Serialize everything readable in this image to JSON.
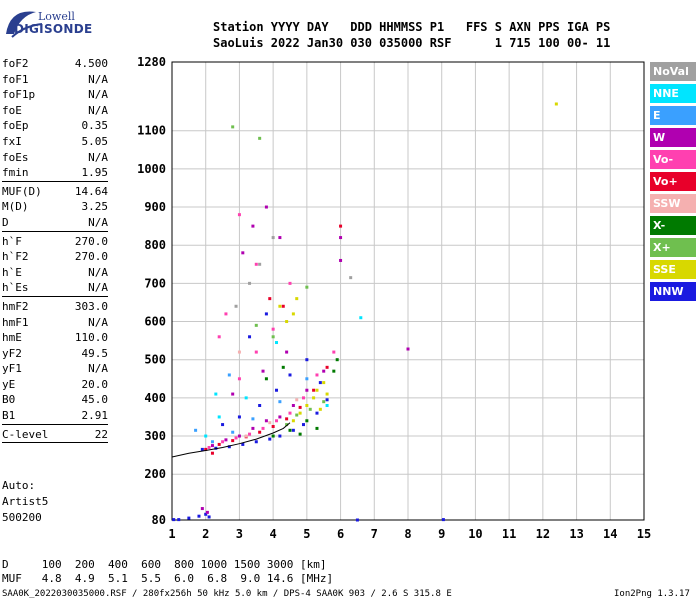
{
  "logo": {
    "line1": "Lowell",
    "line2": "DIGISONDE"
  },
  "header": {
    "labels_line": "Station YYYY DAY   DDD HHMMSS P1   FFS S AXN PPS IGA PS",
    "values_line": "SaoLuis 2022 Jan30 030 035000 RSF      1 715 100 00- 11"
  },
  "parameters": [
    {
      "name": "foF2",
      "value": "4.500"
    },
    {
      "name": "foF1",
      "value": "N/A"
    },
    {
      "name": "foF1p",
      "value": "N/A"
    },
    {
      "name": "foE",
      "value": "N/A"
    },
    {
      "name": "foEp",
      "value": "0.35"
    },
    {
      "name": "fxI",
      "value": "5.05"
    },
    {
      "name": "foEs",
      "value": "N/A"
    },
    {
      "name": "fmin",
      "value": "1.95"
    },
    {
      "sep": true
    },
    {
      "name": "MUF(D)",
      "value": "14.64"
    },
    {
      "name": "M(D)",
      "value": "3.25"
    },
    {
      "name": "D",
      "value": "N/A"
    },
    {
      "sep": true
    },
    {
      "name": "h`F",
      "value": "270.0"
    },
    {
      "name": "h`F2",
      "value": "270.0"
    },
    {
      "name": "h`E",
      "value": "N/A"
    },
    {
      "name": "h`Es",
      "value": "N/A"
    },
    {
      "sep": true
    },
    {
      "name": "hmF2",
      "value": "303.0"
    },
    {
      "name": "hmF1",
      "value": "N/A"
    },
    {
      "name": "hmE",
      "value": "110.0"
    },
    {
      "name": "yF2",
      "value": "49.5"
    },
    {
      "name": "yF1",
      "value": "N/A"
    },
    {
      "name": "yE",
      "value": "20.0"
    },
    {
      "name": "B0",
      "value": "45.0"
    },
    {
      "name": "B1",
      "value": "2.91"
    },
    {
      "sep": true
    },
    {
      "name": "C-level",
      "value": "22"
    },
    {
      "sep": true
    }
  ],
  "auto": {
    "line1": "Auto:",
    "line2": "Artist5",
    "line3": "500200"
  },
  "legend": [
    {
      "label": "NoVal",
      "color": "#a0a0a0"
    },
    {
      "label": "NNE",
      "color": "#00e5ff"
    },
    {
      "label": "E",
      "color": "#3aa0ff"
    },
    {
      "label": "W",
      "color": "#b000b0"
    },
    {
      "label": "Vo-",
      "color": "#ff40b0"
    },
    {
      "label": "Vo+",
      "color": "#e8002a"
    },
    {
      "label": "SSW",
      "color": "#f5b0b0"
    },
    {
      "label": "X-",
      "color": "#007a00"
    },
    {
      "label": "X+",
      "color": "#6fbf4f"
    },
    {
      "label": "SSE",
      "color": "#d8d800"
    },
    {
      "label": "NNW",
      "color": "#1a1ae0"
    }
  ],
  "footer": {
    "d_line": "D     100  200  400  600  800 1000 1500 3000 [km]",
    "muf_line": "MUF   4.8  4.9  5.1  5.5  6.0  6.8  9.0 14.6 [MHz]",
    "file_line": "SAA0K_2022030035000.RSF / 280fx256h 50 kHz 5.0 km / DPS-4 SAA0K 903 / 2.6 S 315.8 E",
    "version": "Ion2Png 1.3.17"
  },
  "chart_data": {
    "type": "scatter",
    "x": {
      "min": 1,
      "max": 15,
      "ticks": [
        1,
        2,
        3,
        4,
        5,
        6,
        7,
        8,
        9,
        10,
        11,
        12,
        13,
        14,
        15
      ]
    },
    "y": {
      "min": 80,
      "max": 1280,
      "ticks": [
        80,
        200,
        300,
        400,
        500,
        600,
        700,
        800,
        900,
        1000,
        1100,
        1280
      ]
    },
    "grid": true,
    "legend_position": "right",
    "series": [
      {
        "name": "NNW",
        "color": "#1a1ae0",
        "points": [
          [
            1.05,
            81
          ],
          [
            1.2,
            81
          ],
          [
            1.5,
            85
          ],
          [
            1.8,
            90
          ],
          [
            2.0,
            95
          ],
          [
            2.1,
            88
          ],
          [
            1.9,
            265
          ],
          [
            2.3,
            268
          ],
          [
            2.7,
            272
          ],
          [
            3.1,
            278
          ],
          [
            3.5,
            285
          ],
          [
            3.9,
            292
          ],
          [
            4.2,
            300
          ],
          [
            4.6,
            315
          ],
          [
            4.9,
            330
          ],
          [
            5.3,
            360
          ],
          [
            5.6,
            395
          ],
          [
            2.5,
            330
          ],
          [
            3.0,
            350
          ],
          [
            3.6,
            380
          ],
          [
            4.1,
            420
          ],
          [
            4.5,
            460
          ],
          [
            5.0,
            500
          ],
          [
            5.4,
            440
          ],
          [
            3.3,
            560
          ],
          [
            3.8,
            620
          ],
          [
            9.05,
            81
          ],
          [
            6.5,
            80
          ]
        ]
      },
      {
        "name": "W",
        "color": "#b000b0",
        "points": [
          [
            1.9,
            110
          ],
          [
            2.05,
            100
          ],
          [
            2.2,
            275
          ],
          [
            2.6,
            290
          ],
          [
            3.0,
            300
          ],
          [
            3.4,
            320
          ],
          [
            3.8,
            340
          ],
          [
            4.2,
            350
          ],
          [
            4.6,
            380
          ],
          [
            5.0,
            420
          ],
          [
            5.5,
            470
          ],
          [
            6.0,
            760
          ],
          [
            6.0,
            820
          ],
          [
            3.1,
            780
          ],
          [
            3.4,
            850
          ],
          [
            3.8,
            900
          ],
          [
            4.2,
            820
          ],
          [
            8.0,
            528
          ],
          [
            2.8,
            410
          ],
          [
            3.7,
            470
          ],
          [
            4.4,
            520
          ]
        ]
      },
      {
        "name": "Vo-",
        "color": "#ff40b0",
        "points": [
          [
            2.1,
            270
          ],
          [
            2.5,
            285
          ],
          [
            2.9,
            295
          ],
          [
            3.3,
            305
          ],
          [
            3.7,
            320
          ],
          [
            4.1,
            340
          ],
          [
            4.5,
            360
          ],
          [
            4.9,
            400
          ],
          [
            5.3,
            460
          ],
          [
            5.8,
            520
          ],
          [
            3.0,
            450
          ],
          [
            3.5,
            520
          ],
          [
            4.0,
            580
          ],
          [
            2.6,
            620
          ],
          [
            3.0,
            880
          ],
          [
            3.5,
            750
          ],
          [
            4.5,
            700
          ],
          [
            2.4,
            560
          ]
        ]
      },
      {
        "name": "Vo+",
        "color": "#e8002a",
        "points": [
          [
            2.0,
            265
          ],
          [
            2.4,
            278
          ],
          [
            2.8,
            288
          ],
          [
            3.2,
            298
          ],
          [
            3.6,
            310
          ],
          [
            4.0,
            325
          ],
          [
            4.4,
            345
          ],
          [
            4.8,
            375
          ],
          [
            5.2,
            420
          ],
          [
            5.6,
            480
          ],
          [
            6.0,
            850
          ],
          [
            4.3,
            640
          ],
          [
            3.9,
            660
          ],
          [
            2.2,
            255
          ]
        ]
      },
      {
        "name": "SSE",
        "color": "#d8d800",
        "points": [
          [
            4.6,
            340
          ],
          [
            4.8,
            360
          ],
          [
            5.0,
            380
          ],
          [
            5.2,
            400
          ],
          [
            5.3,
            420
          ],
          [
            5.5,
            440
          ],
          [
            5.6,
            410
          ],
          [
            5.4,
            370
          ],
          [
            4.4,
            600
          ],
          [
            4.6,
            620
          ],
          [
            4.2,
            640
          ],
          [
            4.7,
            660
          ],
          [
            12.4,
            1170
          ]
        ]
      },
      {
        "name": "X-",
        "color": "#007a00",
        "points": [
          [
            4.0,
            300
          ],
          [
            4.5,
            315
          ],
          [
            5.0,
            340
          ],
          [
            5.3,
            320
          ],
          [
            4.8,
            305
          ],
          [
            3.8,
            450
          ],
          [
            4.3,
            480
          ],
          [
            5.8,
            470
          ],
          [
            5.9,
            500
          ]
        ]
      },
      {
        "name": "X+",
        "color": "#6fbf4f",
        "points": [
          [
            4.4,
            330
          ],
          [
            4.7,
            355
          ],
          [
            5.1,
            370
          ],
          [
            5.5,
            390
          ],
          [
            3.5,
            590
          ],
          [
            4.0,
            560
          ],
          [
            2.8,
            1110
          ],
          [
            3.6,
            1080
          ],
          [
            5.0,
            690
          ]
        ]
      },
      {
        "name": "NNE",
        "color": "#00e5ff",
        "points": [
          [
            2.0,
            300
          ],
          [
            2.4,
            350
          ],
          [
            3.2,
            400
          ],
          [
            5.6,
            380
          ],
          [
            6.6,
            610
          ],
          [
            2.3,
            410
          ],
          [
            4.1,
            545
          ]
        ]
      },
      {
        "name": "E",
        "color": "#3aa0ff",
        "points": [
          [
            2.2,
            285
          ],
          [
            2.8,
            310
          ],
          [
            3.4,
            345
          ],
          [
            4.2,
            390
          ],
          [
            5.0,
            450
          ],
          [
            1.7,
            315
          ],
          [
            2.7,
            460
          ]
        ]
      },
      {
        "name": "SSW",
        "color": "#f5b0b0",
        "points": [
          [
            3.2,
            300
          ],
          [
            3.9,
            335
          ],
          [
            4.7,
            395
          ],
          [
            3.0,
            520
          ]
        ]
      },
      {
        "name": "NoVal",
        "color": "#a0a0a0",
        "points": [
          [
            3.3,
            700
          ],
          [
            3.6,
            750
          ],
          [
            4.0,
            820
          ],
          [
            2.9,
            640
          ],
          [
            6.3,
            715
          ]
        ]
      }
    ],
    "curve": {
      "color": "#000000",
      "points": [
        [
          1.0,
          245
        ],
        [
          1.5,
          255
        ],
        [
          2.0,
          262
        ],
        [
          2.5,
          270
        ],
        [
          3.0,
          280
        ],
        [
          3.5,
          292
        ],
        [
          4.0,
          308
        ],
        [
          4.3,
          320
        ],
        [
          4.5,
          335
        ]
      ]
    }
  }
}
